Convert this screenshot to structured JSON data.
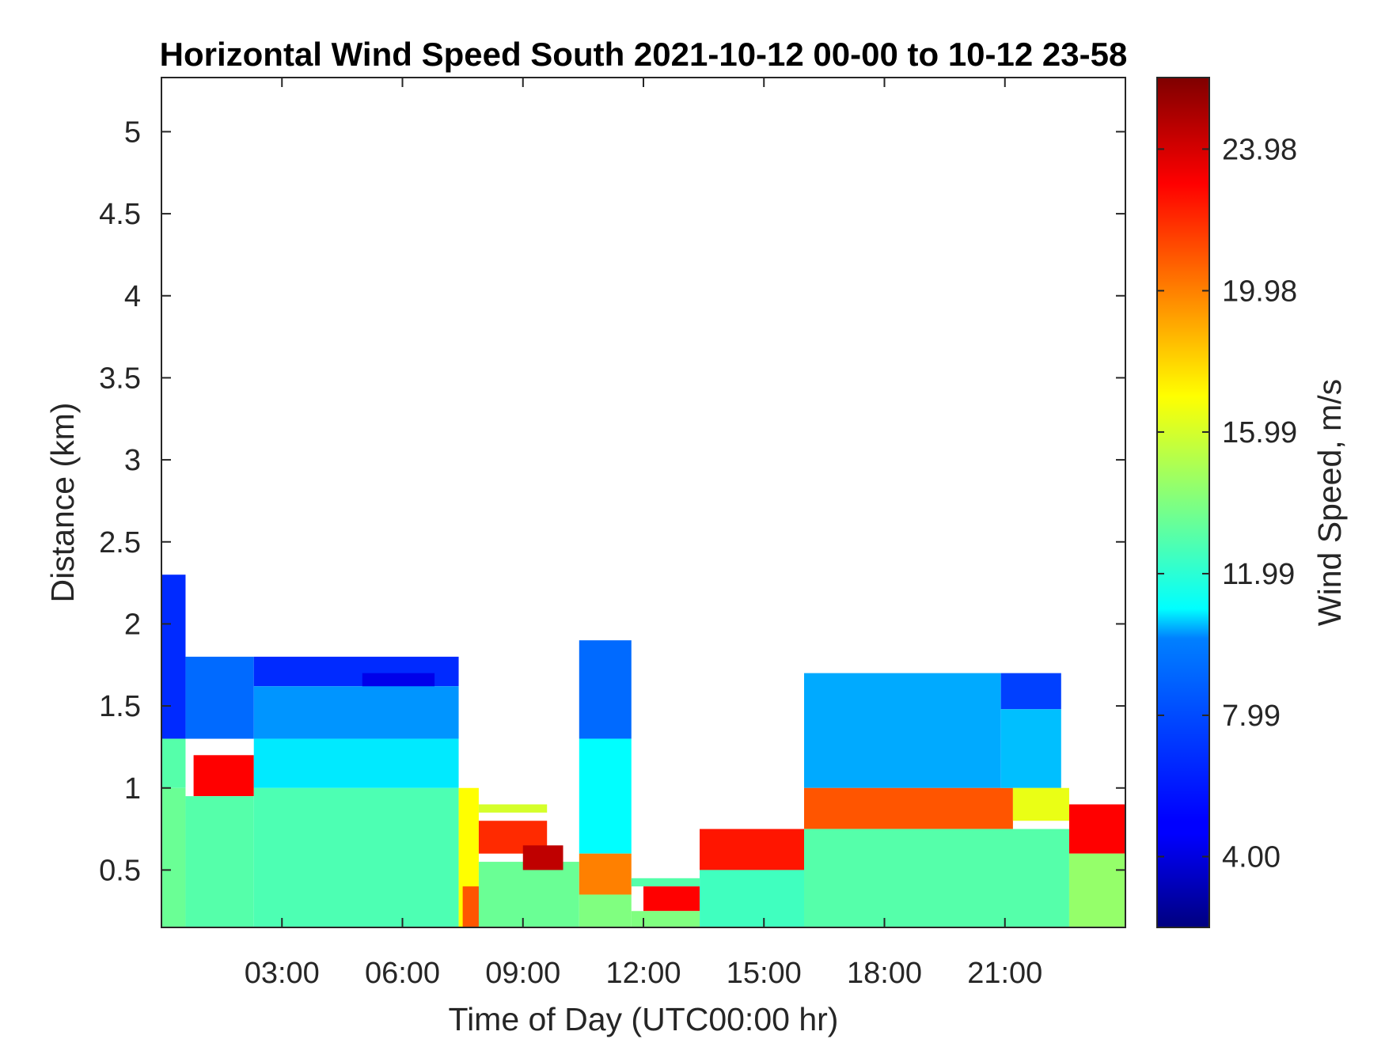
{
  "chart_data": {
    "type": "heatmap",
    "title": "Horizontal Wind Speed South 2021-10-12 00-00 to 10-12 23-58",
    "xlabel": "Time of Day (UTC00:00 hr)",
    "ylabel": "Distance (km)",
    "x_range_hours": [
      0,
      24
    ],
    "y_range_km": [
      0.15,
      5.33
    ],
    "x_ticks": [
      {
        "value": 3,
        "label": "03:00"
      },
      {
        "value": 6,
        "label": "06:00"
      },
      {
        "value": 9,
        "label": "09:00"
      },
      {
        "value": 12,
        "label": "12:00"
      },
      {
        "value": 15,
        "label": "15:00"
      },
      {
        "value": 18,
        "label": "18:00"
      },
      {
        "value": 21,
        "label": "21:00"
      }
    ],
    "y_ticks": [
      {
        "value": 0.5,
        "label": "0.5"
      },
      {
        "value": 1,
        "label": "1"
      },
      {
        "value": 1.5,
        "label": "1.5"
      },
      {
        "value": 2,
        "label": "2"
      },
      {
        "value": 2.5,
        "label": "2.5"
      },
      {
        "value": 3,
        "label": "3"
      },
      {
        "value": 3.5,
        "label": "3.5"
      },
      {
        "value": 4,
        "label": "4"
      },
      {
        "value": 4.5,
        "label": "4.5"
      },
      {
        "value": 5,
        "label": "5"
      }
    ],
    "colorbar": {
      "label": "Wind Speed, m/s",
      "colormap": "jet",
      "range": [
        2.0,
        26.0
      ],
      "ticks": [
        {
          "value": 4.0,
          "label": "4.00"
        },
        {
          "value": 7.99,
          "label": "7.99"
        },
        {
          "value": 11.99,
          "label": "11.99"
        },
        {
          "value": 15.99,
          "label": "15.99"
        },
        {
          "value": 19.98,
          "label": "19.98"
        },
        {
          "value": 23.98,
          "label": "23.98"
        }
      ]
    },
    "grid": false,
    "blocks": [
      {
        "t": [
          0.0,
          0.6
        ],
        "z": [
          1.3,
          2.3
        ],
        "v": 6.0
      },
      {
        "t": [
          0.0,
          0.6
        ],
        "z": [
          1.0,
          1.3
        ],
        "v": 13.0
      },
      {
        "t": [
          0.0,
          0.6
        ],
        "z": [
          0.15,
          1.0
        ],
        "v": 13.5
      },
      {
        "t": [
          0.6,
          2.3
        ],
        "z": [
          1.3,
          1.8
        ],
        "v": 7.5
      },
      {
        "t": [
          0.8,
          2.3
        ],
        "z": [
          0.95,
          1.2
        ],
        "v": 23.0
      },
      {
        "t": [
          0.6,
          2.3
        ],
        "z": [
          0.15,
          0.95
        ],
        "v": 13.0
      },
      {
        "t": [
          2.3,
          7.4
        ],
        "z": [
          1.62,
          1.8
        ],
        "v": 6.0
      },
      {
        "t": [
          5.0,
          6.8
        ],
        "z": [
          1.55,
          1.7
        ],
        "v": 4.5
      },
      {
        "t": [
          2.3,
          7.4
        ],
        "z": [
          1.3,
          1.62
        ],
        "v": 8.5
      },
      {
        "t": [
          2.3,
          7.4
        ],
        "z": [
          1.0,
          1.3
        ],
        "v": 10.5
      },
      {
        "t": [
          2.3,
          7.4
        ],
        "z": [
          0.15,
          1.0
        ],
        "v": 12.8
      },
      {
        "t": [
          7.4,
          7.9
        ],
        "z": [
          0.15,
          1.0
        ],
        "v": 17.0
      },
      {
        "t": [
          7.5,
          8.0
        ],
        "z": [
          0.15,
          0.4
        ],
        "v": 21.0
      },
      {
        "t": [
          7.9,
          9.6
        ],
        "z": [
          0.85,
          0.9
        ],
        "v": 16.0
      },
      {
        "t": [
          7.9,
          9.6
        ],
        "z": [
          0.6,
          0.8
        ],
        "v": 22.0
      },
      {
        "t": [
          7.9,
          10.4
        ],
        "z": [
          0.15,
          0.55
        ],
        "v": 13.5
      },
      {
        "t": [
          9.0,
          10.0
        ],
        "z": [
          0.5,
          0.65
        ],
        "v": 24.5
      },
      {
        "t": [
          10.4,
          11.7
        ],
        "z": [
          1.3,
          1.9
        ],
        "v": 7.5
      },
      {
        "t": [
          10.4,
          11.7
        ],
        "z": [
          0.6,
          1.3
        ],
        "v": 11.0
      },
      {
        "t": [
          10.4,
          11.7
        ],
        "z": [
          0.35,
          0.6
        ],
        "v": 20.0
      },
      {
        "t": [
          10.4,
          11.7
        ],
        "z": [
          0.15,
          0.35
        ],
        "v": 14.0
      },
      {
        "t": [
          11.7,
          13.4
        ],
        "z": [
          0.4,
          0.45
        ],
        "v": 13.0
      },
      {
        "t": [
          12.0,
          13.4
        ],
        "z": [
          0.25,
          0.4
        ],
        "v": 23.0
      },
      {
        "t": [
          11.7,
          13.4
        ],
        "z": [
          0.15,
          0.25
        ],
        "v": 14.0
      },
      {
        "t": [
          13.4,
          16.0
        ],
        "z": [
          0.5,
          0.75
        ],
        "v": 22.5
      },
      {
        "t": [
          13.4,
          16.0
        ],
        "z": [
          0.15,
          0.5
        ],
        "v": 12.5
      },
      {
        "t": [
          16.0,
          20.9
        ],
        "z": [
          1.0,
          1.7
        ],
        "v": 9.0
      },
      {
        "t": [
          16.0,
          21.2
        ],
        "z": [
          0.75,
          1.0
        ],
        "v": 21.0
      },
      {
        "t": [
          16.0,
          22.6
        ],
        "z": [
          0.15,
          0.75
        ],
        "v": 13.0
      },
      {
        "t": [
          20.9,
          22.4
        ],
        "z": [
          1.48,
          1.7
        ],
        "v": 6.5
      },
      {
        "t": [
          20.9,
          22.4
        ],
        "z": [
          1.0,
          1.48
        ],
        "v": 9.5
      },
      {
        "t": [
          21.2,
          22.6
        ],
        "z": [
          0.8,
          1.0
        ],
        "v": 16.5
      },
      {
        "t": [
          22.6,
          24.0
        ],
        "z": [
          0.6,
          0.9
        ],
        "v": 23.0
      },
      {
        "t": [
          22.6,
          24.0
        ],
        "z": [
          0.15,
          0.6
        ],
        "v": 14.5
      }
    ]
  }
}
